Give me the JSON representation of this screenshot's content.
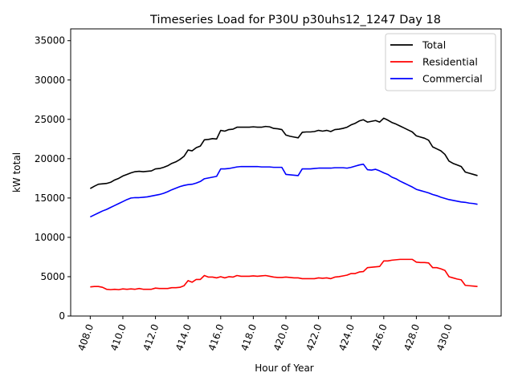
{
  "chart_data": {
    "type": "line",
    "title": "Timeseries Load for P30U p30uhs12_1247  Day 18",
    "xlabel": "Hour of Year",
    "ylabel": "kW total",
    "xlim": [
      406.8,
      433.2
    ],
    "ylim": [
      0,
      36500
    ],
    "xticks": [
      408,
      410,
      412,
      414,
      416,
      418,
      420,
      422,
      424,
      426,
      428,
      430
    ],
    "xtick_labels": [
      "408.0",
      "410.0",
      "412.0",
      "414.0",
      "416.0",
      "418.0",
      "420.0",
      "422.0",
      "424.0",
      "426.0",
      "428.0",
      "430.0"
    ],
    "yticks": [
      0,
      5000,
      10000,
      15000,
      20000,
      25000,
      30000,
      35000
    ],
    "ytick_labels": [
      "0",
      "5000",
      "10000",
      "15000",
      "20000",
      "25000",
      "30000",
      "35000"
    ],
    "grid": false,
    "legend_position": "top-right",
    "x": [
      408.0,
      408.25,
      408.5,
      408.75,
      409.0,
      409.25,
      409.5,
      409.75,
      410.0,
      410.25,
      410.5,
      410.75,
      411.0,
      411.25,
      411.5,
      411.75,
      412.0,
      412.25,
      412.5,
      412.75,
      413.0,
      413.25,
      413.5,
      413.75,
      414.0,
      414.25,
      414.5,
      414.75,
      415.0,
      415.25,
      415.5,
      415.75,
      416.0,
      416.25,
      416.5,
      416.75,
      417.0,
      417.25,
      417.5,
      417.75,
      418.0,
      418.25,
      418.5,
      418.75,
      419.0,
      419.25,
      419.5,
      419.75,
      420.0,
      420.25,
      420.5,
      420.75,
      421.0,
      421.25,
      421.5,
      421.75,
      422.0,
      422.25,
      422.5,
      422.75,
      423.0,
      423.25,
      423.5,
      423.75,
      424.0,
      424.25,
      424.5,
      424.75,
      425.0,
      425.25,
      425.5,
      425.75,
      426.0,
      426.25,
      426.5,
      426.75,
      427.0,
      427.25,
      427.5,
      427.75,
      428.0,
      428.25,
      428.5,
      428.75,
      429.0,
      429.25,
      429.5,
      429.75,
      430.0,
      430.25,
      430.5,
      430.75,
      431.0,
      431.25,
      431.5,
      431.75
    ],
    "series": [
      {
        "name": "Total",
        "color": "#000000",
        "values": [
          16200,
          16500,
          16750,
          16800,
          16850,
          17000,
          17300,
          17500,
          17800,
          18000,
          18200,
          18350,
          18400,
          18350,
          18400,
          18450,
          18700,
          18750,
          18900,
          19100,
          19400,
          19600,
          19900,
          20300,
          21100,
          21000,
          21400,
          21600,
          22400,
          22450,
          22550,
          22500,
          23600,
          23500,
          23700,
          23750,
          24000,
          24000,
          24000,
          24000,
          24050,
          24000,
          24000,
          24100,
          24050,
          23850,
          23800,
          23700,
          23000,
          22850,
          22750,
          22650,
          23350,
          23400,
          23400,
          23450,
          23600,
          23500,
          23600,
          23450,
          23700,
          23750,
          23850,
          24000,
          24300,
          24500,
          24800,
          24950,
          24650,
          24750,
          24850,
          24650,
          25150,
          24900,
          24600,
          24400,
          24150,
          23900,
          23650,
          23400,
          22900,
          22750,
          22600,
          22350,
          21500,
          21250,
          21000,
          20550,
          19700,
          19400,
          19200,
          19000,
          18300,
          18150,
          18000,
          17850
        ]
      },
      {
        "name": "Residential",
        "color": "#ff0000",
        "values": [
          3700,
          3750,
          3750,
          3650,
          3400,
          3350,
          3400,
          3350,
          3450,
          3400,
          3450,
          3400,
          3500,
          3400,
          3400,
          3400,
          3550,
          3500,
          3500,
          3500,
          3600,
          3600,
          3650,
          3850,
          4500,
          4300,
          4650,
          4650,
          5150,
          4950,
          4950,
          4850,
          5000,
          4850,
          5000,
          4950,
          5150,
          5050,
          5050,
          5050,
          5100,
          5050,
          5100,
          5150,
          5050,
          4950,
          4900,
          4900,
          4950,
          4900,
          4850,
          4850,
          4750,
          4750,
          4750,
          4750,
          4850,
          4800,
          4850,
          4750,
          4950,
          5000,
          5100,
          5200,
          5400,
          5400,
          5600,
          5650,
          6150,
          6200,
          6250,
          6300,
          7000,
          7000,
          7100,
          7150,
          7200,
          7200,
          7200,
          7200,
          6850,
          6800,
          6800,
          6750,
          6150,
          6150,
          6000,
          5800,
          5000,
          4850,
          4700,
          4600,
          3900,
          3850,
          3800,
          3750
        ]
      },
      {
        "name": "Commercial",
        "color": "#0000ff",
        "values": [
          12600,
          12850,
          13100,
          13350,
          13550,
          13800,
          14050,
          14300,
          14550,
          14800,
          15000,
          15050,
          15050,
          15100,
          15150,
          15250,
          15350,
          15450,
          15600,
          15800,
          16050,
          16250,
          16450,
          16600,
          16700,
          16750,
          16900,
          17100,
          17450,
          17550,
          17650,
          17750,
          18700,
          18700,
          18750,
          18850,
          18950,
          19000,
          19000,
          19000,
          19000,
          19000,
          18950,
          18950,
          18950,
          18900,
          18900,
          18900,
          18000,
          17950,
          17900,
          17850,
          18700,
          18700,
          18700,
          18750,
          18800,
          18800,
          18800,
          18800,
          18850,
          18850,
          18850,
          18800,
          18900,
          19050,
          19200,
          19300,
          18600,
          18550,
          18650,
          18450,
          18200,
          18000,
          17650,
          17450,
          17150,
          16900,
          16650,
          16400,
          16100,
          15950,
          15800,
          15650,
          15450,
          15300,
          15100,
          14950,
          14800,
          14700,
          14600,
          14500,
          14450,
          14350,
          14300,
          14200
        ]
      }
    ]
  }
}
